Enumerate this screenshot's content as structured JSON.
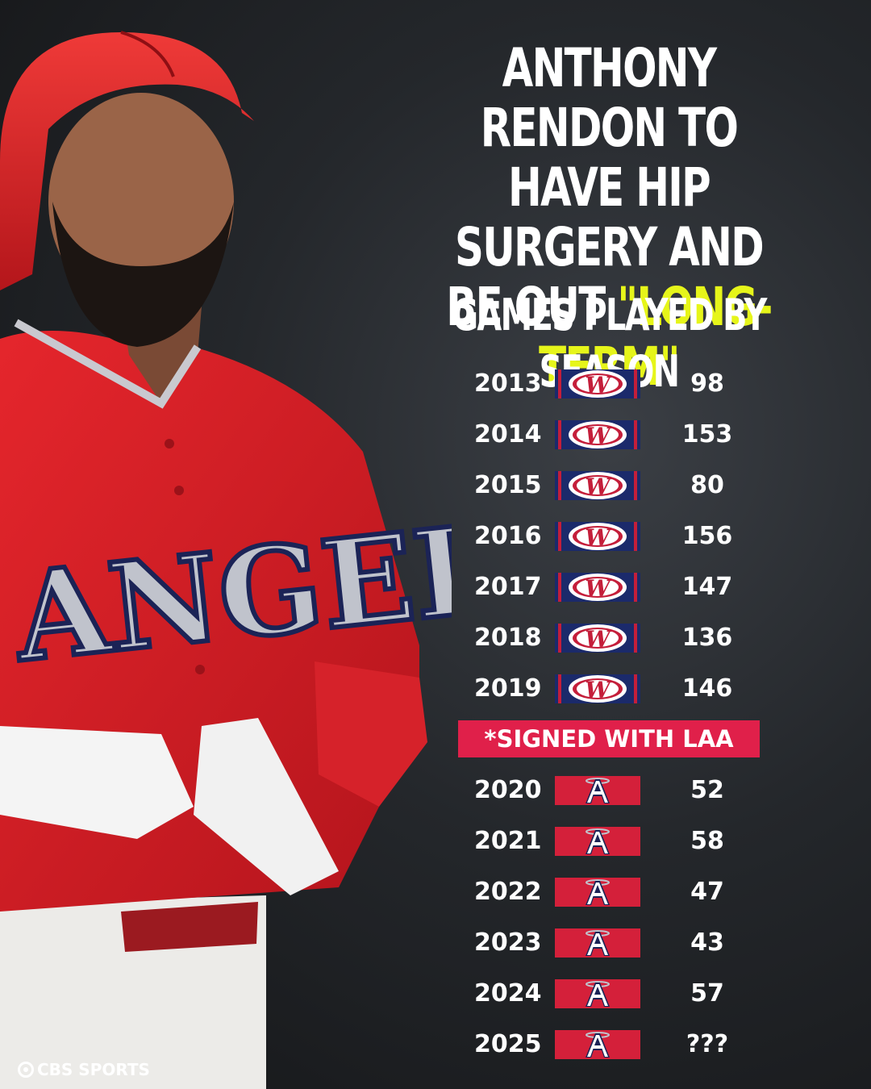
{
  "headline": {
    "line1": "ANTHONY RENDON TO",
    "line2": "HAVE HIP SURGERY AND",
    "line3_prefix": "BE OUT ",
    "line3_accent": "\"LONG-TERM\""
  },
  "subhead": "GAMES PLAYED BY SEASON",
  "seasons_nationals": [
    {
      "year": "2013",
      "games": "98"
    },
    {
      "year": "2014",
      "games": "153"
    },
    {
      "year": "2015",
      "games": "80"
    },
    {
      "year": "2016",
      "games": "156"
    },
    {
      "year": "2017",
      "games": "147"
    },
    {
      "year": "2018",
      "games": "136"
    },
    {
      "year": "2019",
      "games": "146"
    }
  ],
  "signed_banner": "*SIGNED WITH LAA",
  "seasons_angels": [
    {
      "year": "2020",
      "games": "52"
    },
    {
      "year": "2021",
      "games": "58"
    },
    {
      "year": "2022",
      "games": "47"
    },
    {
      "year": "2023",
      "games": "43"
    },
    {
      "year": "2024",
      "games": "57"
    },
    {
      "year": "2025",
      "games": "???"
    }
  ],
  "jersey_text": "ANGELS",
  "brand": "CBS SPORTS",
  "colors": {
    "accent": "#e6f51a",
    "banner": "#e0204a",
    "nationals_navy": "#1b2a6b",
    "angels_red": "#d4203a"
  },
  "icons": {
    "nationals": "nationals-logo-icon",
    "angels": "angels-logo-icon",
    "brand": "cbs-eye-icon"
  }
}
